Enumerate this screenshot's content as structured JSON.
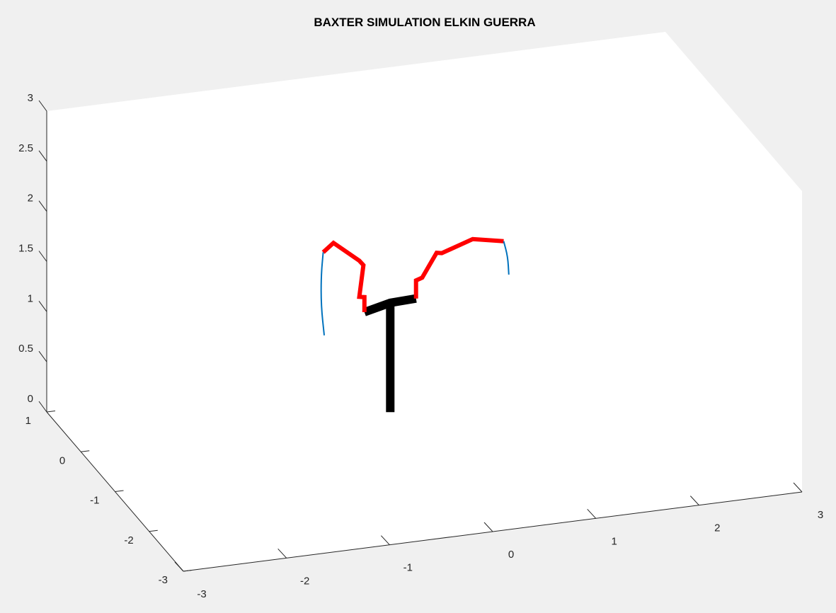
{
  "chart_data": {
    "type": "line3d",
    "title": "BAXTER SIMULATION ELKIN GUERRA",
    "xlabel": "",
    "ylabel": "",
    "zlabel": "",
    "xlim": [
      -3,
      3
    ],
    "ylim": [
      -3,
      1
    ],
    "zlim": [
      0,
      3
    ],
    "grid": false,
    "box": true,
    "x_ticks": [
      "-3",
      "-2",
      "-1",
      "0",
      "1",
      "2",
      "3"
    ],
    "y_ticks": [
      "-3",
      "-2",
      "-1",
      "0",
      "1"
    ],
    "z_ticks": [
      "0",
      "0.5",
      "1",
      "1.5",
      "2",
      "2.5",
      "3"
    ],
    "series": [
      {
        "role": "torso",
        "color": "#000000",
        "width": 12,
        "points": [
          [
            0,
            0,
            0
          ],
          [
            0,
            0,
            1.09
          ]
        ]
      },
      {
        "role": "shoulders",
        "color": "#000000",
        "width": 12,
        "points": [
          [
            -0.25,
            0,
            1.03
          ],
          [
            0,
            0,
            1.09
          ],
          [
            0.25,
            0,
            1.1
          ]
        ]
      },
      {
        "role": "left-arm",
        "color": "#ff0000",
        "width": 6,
        "points": [
          [
            -0.25,
            0,
            1.03
          ],
          [
            -0.25,
            0,
            1.18
          ],
          [
            -0.3,
            0,
            1.19
          ],
          [
            -0.26,
            0,
            1.5
          ],
          [
            -0.3,
            0,
            1.55
          ],
          [
            -0.55,
            0,
            1.76
          ],
          [
            -0.65,
            0,
            1.68
          ]
        ]
      },
      {
        "role": "right-arm",
        "color": "#ff0000",
        "width": 6,
        "points": [
          [
            0.25,
            0,
            1.1
          ],
          [
            0.25,
            0,
            1.28
          ],
          [
            0.31,
            0,
            1.3
          ],
          [
            0.45,
            0,
            1.53
          ],
          [
            0.5,
            0,
            1.52
          ],
          [
            0.8,
            0,
            1.62
          ],
          [
            1.1,
            0,
            1.56
          ]
        ]
      },
      {
        "role": "left-trajectory",
        "color": "#0072bd",
        "width": 2,
        "points": [
          [
            -0.65,
            0,
            1.68
          ],
          [
            -0.67,
            0,
            1.45
          ],
          [
            -0.67,
            0,
            1.15
          ],
          [
            -0.64,
            0,
            0.85
          ]
        ]
      },
      {
        "role": "right-trajectory",
        "color": "#0072bd",
        "width": 2,
        "points": [
          [
            1.1,
            0,
            1.56
          ],
          [
            1.14,
            0,
            1.4
          ],
          [
            1.15,
            0,
            1.22
          ]
        ]
      }
    ]
  }
}
